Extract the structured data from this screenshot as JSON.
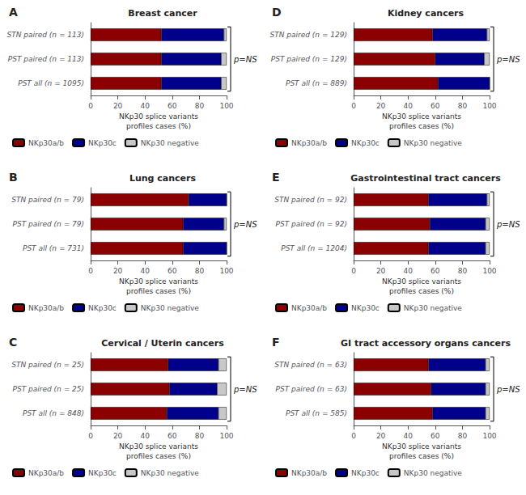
{
  "chart_data": [
    {
      "type": "bar",
      "title": "Breast cancer",
      "annotations": [
        "A",
        "p=NS"
      ],
      "orientation": "horizontal",
      "stacked": true,
      "grid": false,
      "legend": "lower left",
      "categories": [
        "PST all (n = 1095)",
        "PST paired (n = 113)",
        "STN paired (n = 113)"
      ],
      "series": [
        {
          "name": "NKp30a/b",
          "color": "#8B0000",
          "values": [
            52,
            52,
            52
          ]
        },
        {
          "name": "NKp30c",
          "color": "#00008B",
          "values": [
            44,
            44,
            46
          ]
        },
        {
          "name": "NKp30 negative",
          "color": "#C8C8C8",
          "values": [
            4,
            4,
            2
          ]
        }
      ],
      "xlabel": "NKp30 splice variants\nprofiles cases (%)",
      "xlim": [
        0,
        100
      ],
      "xticks": [
        0,
        20,
        40,
        60,
        80,
        100
      ]
    },
    {
      "type": "bar",
      "title": "Kidney cancers",
      "annotations": [
        "D",
        "p=NS"
      ],
      "orientation": "horizontal",
      "stacked": true,
      "grid": false,
      "legend": "lower left",
      "categories": [
        "PST all (n = 889)",
        "PST paired (n = 129)",
        "STN paired (n = 129)"
      ],
      "series": [
        {
          "name": "NKp30a/b",
          "color": "#8B0000",
          "values": [
            62,
            60,
            58
          ]
        },
        {
          "name": "NKp30c",
          "color": "#00008B",
          "values": [
            38,
            36,
            40
          ]
        },
        {
          "name": "NKp30 negative",
          "color": "#C8C8C8",
          "values": [
            0,
            4,
            2
          ]
        }
      ],
      "xlabel": "NKp30 splice variants\nprofiles cases (%)",
      "xlim": [
        0,
        100
      ],
      "xticks": [
        0,
        20,
        40,
        60,
        80,
        100
      ]
    },
    {
      "type": "bar",
      "title": "Lung cancers",
      "annotations": [
        "B",
        "p=NS"
      ],
      "orientation": "horizontal",
      "stacked": true,
      "grid": false,
      "legend": "lower left",
      "categories": [
        "PST all (n = 731)",
        "PST paired (n = 79)",
        "STN paired (n = 79)"
      ],
      "series": [
        {
          "name": "NKp30a/b",
          "color": "#8B0000",
          "values": [
            68,
            68,
            72
          ]
        },
        {
          "name": "NKp30c",
          "color": "#00008B",
          "values": [
            32,
            30,
            28
          ]
        },
        {
          "name": "NKp30 negative",
          "color": "#C8C8C8",
          "values": [
            0,
            2,
            0
          ]
        }
      ],
      "xlabel": "NKp30 splice variants\nprofiles cases (%)",
      "xlim": [
        0,
        100
      ],
      "xticks": [
        0,
        20,
        40,
        60,
        80,
        100
      ]
    },
    {
      "type": "bar",
      "title": "Gastrointestinal tract cancers",
      "annotations": [
        "E",
        "p=NS"
      ],
      "orientation": "horizontal",
      "stacked": true,
      "grid": false,
      "legend": "lower left",
      "categories": [
        "PST all (n = 1204)",
        "PST paired (n = 92)",
        "STN paired (n = 92)"
      ],
      "series": [
        {
          "name": "NKp30a/b",
          "color": "#8B0000",
          "values": [
            55,
            56,
            55
          ]
        },
        {
          "name": "NKp30c",
          "color": "#00008B",
          "values": [
            42,
            41,
            43
          ]
        },
        {
          "name": "NKp30 negative",
          "color": "#C8C8C8",
          "values": [
            3,
            3,
            2
          ]
        }
      ],
      "xlabel": "NKp30 splice variants\nprofiles cases (%)",
      "xlim": [
        0,
        100
      ],
      "xticks": [
        0,
        20,
        40,
        60,
        80,
        100
      ]
    },
    {
      "type": "bar",
      "title": "Cervical / Uterin cancers",
      "annotations": [
        "C",
        "p=NS"
      ],
      "orientation": "horizontal",
      "stacked": true,
      "grid": false,
      "legend": "lower left",
      "categories": [
        "PST all (n = 848)",
        "PST paired (n = 25)",
        "STN paired (n = 25)"
      ],
      "series": [
        {
          "name": "NKp30a/b",
          "color": "#8B0000",
          "values": [
            56,
            58,
            57
          ]
        },
        {
          "name": "NKp30c",
          "color": "#00008B",
          "values": [
            38,
            35,
            37
          ]
        },
        {
          "name": "NKp30 negative",
          "color": "#C8C8C8",
          "values": [
            6,
            7,
            6
          ]
        }
      ],
      "xlabel": "NKp30 splice variants\nprofiles cases (%)",
      "xlim": [
        0,
        100
      ],
      "xticks": [
        0,
        20,
        40,
        60,
        80,
        100
      ]
    },
    {
      "type": "bar",
      "title": "GI tract accessory organs cancers",
      "annotations": [
        "F",
        "p=NS"
      ],
      "orientation": "horizontal",
      "stacked": true,
      "grid": false,
      "legend": "lower left",
      "categories": [
        "PST all (n = 585)",
        "PST paired (n = 63)",
        "STN paired (n = 63)"
      ],
      "series": [
        {
          "name": "NKp30a/b",
          "color": "#8B0000",
          "values": [
            58,
            57,
            55
          ]
        },
        {
          "name": "NKp30c",
          "color": "#00008B",
          "values": [
            39,
            40,
            42
          ]
        },
        {
          "name": "NKp30 negative",
          "color": "#C8C8C8",
          "values": [
            3,
            3,
            3
          ]
        }
      ],
      "xlabel": "NKp30 splice variants\nprofiles cases (%)",
      "xlim": [
        0,
        100
      ],
      "xticks": [
        0,
        20,
        40,
        60,
        80,
        100
      ]
    }
  ]
}
